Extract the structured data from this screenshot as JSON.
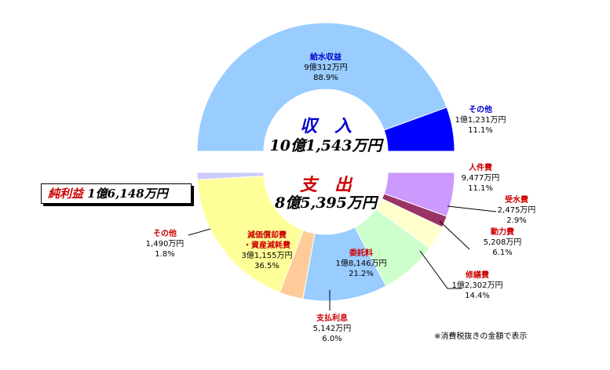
{
  "chart_data": {
    "type": "pie",
    "style": "donut",
    "rings": [
      {
        "name": "収入",
        "total_label": "10億1,543万円",
        "slices": [
          {
            "name": "給水収益",
            "amount_label": "9億312万円",
            "percent_label": "88.9%",
            "value": 88.9,
            "color": "#99ccff",
            "name_color": "#0000cc"
          },
          {
            "name": "その他",
            "amount_label": "1億1,231万円",
            "percent_label": "11.1%",
            "value": 11.1,
            "color": "#0000ff",
            "name_color": "#0000cc"
          }
        ]
      },
      {
        "name": "支出",
        "total_label": "8億5,395万円",
        "slices": [
          {
            "name": "人件費",
            "amount_label": "9,477万円",
            "percent_label": "11.1%",
            "value": 11.1,
            "color": "#cc99ff",
            "name_color": "#cc0000"
          },
          {
            "name": "受水費",
            "amount_label": "2,475万円",
            "percent_label": "2.9%",
            "value": 2.9,
            "color": "#993366",
            "name_color": "#cc0000"
          },
          {
            "name": "動力費",
            "amount_label": "5,208万円",
            "percent_label": "6.1%",
            "value": 6.1,
            "color": "#ffffcc",
            "name_color": "#cc0000"
          },
          {
            "name": "修繕費",
            "amount_label": "1億2,302万円",
            "percent_label": "14.4%",
            "value": 14.4,
            "color": "#ccffcc",
            "name_color": "#cc0000"
          },
          {
            "name": "委託料",
            "amount_label": "1億8,146万円",
            "percent_label": "21.2%",
            "value": 21.2,
            "color": "#99ccff",
            "name_color": "#cc0000"
          },
          {
            "name": "支払利息",
            "amount_label": "5,142万円",
            "percent_label": "6.0%",
            "value": 6.0,
            "color": "#ffcc99",
            "name_color": "#cc0000"
          },
          {
            "name": "減価償却費・資産減耗費",
            "name_lines": [
              "減価償却費",
              "・資産減耗費"
            ],
            "amount_label": "3億1,155万円",
            "percent_label": "36.5%",
            "value": 36.5,
            "color": "#ffff99",
            "name_color": "#cc0000"
          },
          {
            "name": "その他",
            "amount_label": "1,490万円",
            "percent_label": "1.8%",
            "value": 1.8,
            "color": "#ccccff",
            "name_color": "#cc0000"
          }
        ]
      }
    ],
    "net_profit": {
      "label": "純利益",
      "value_label": "1億6,148万円",
      "color": "#000080"
    }
  },
  "center": {
    "income_title": "収　入",
    "income_total": "10億1,543万円",
    "expense_title": "支　出",
    "expense_total": "8億5,395万円"
  },
  "profit_box": {
    "label": "純利益",
    "value": "1億6,148万円"
  },
  "footnote": "※消費税抜きの金額で表示"
}
